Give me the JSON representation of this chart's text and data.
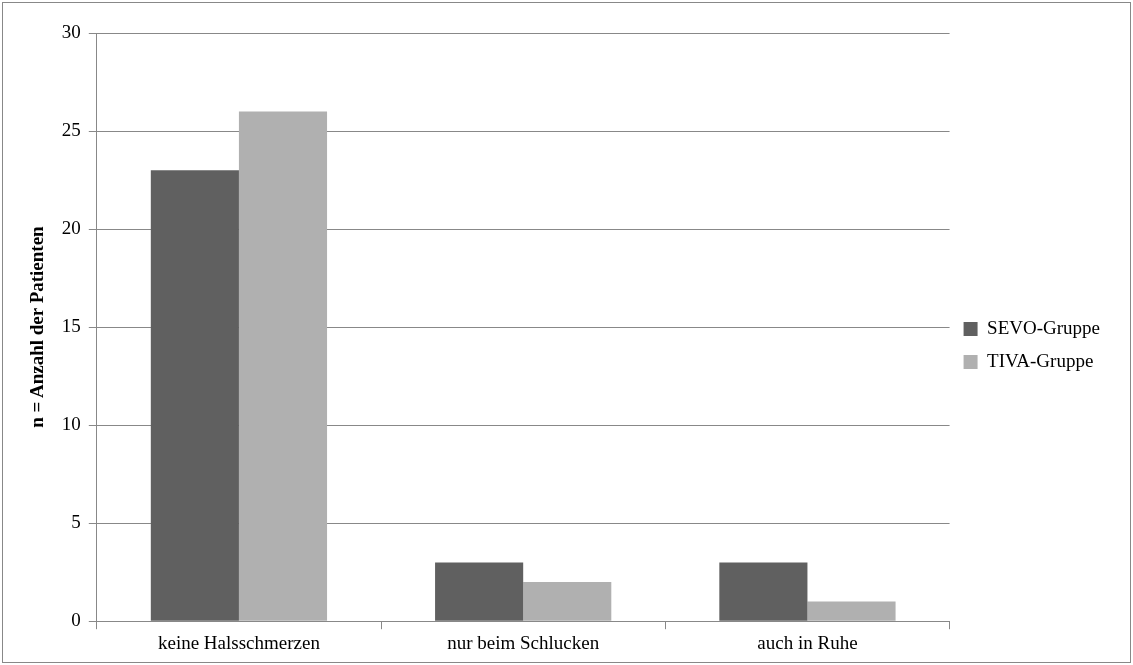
{
  "chart_data": {
    "type": "bar",
    "ylabel": "n = Anzahl der Patienten",
    "categories": [
      "keine Halsschmerzen",
      "nur beim Schlucken",
      "auch in Ruhe"
    ],
    "series": [
      {
        "name": "SEVO-Gruppe",
        "color": "#606060",
        "values": [
          23,
          3,
          3
        ]
      },
      {
        "name": "TIVA-Gruppe",
        "color": "#b0b0b0",
        "values": [
          26,
          2,
          1
        ]
      }
    ],
    "ylim": [
      0,
      30
    ],
    "yticks": [
      0,
      5,
      10,
      15,
      20,
      25,
      30
    ],
    "grid": "y",
    "legend": "right"
  }
}
